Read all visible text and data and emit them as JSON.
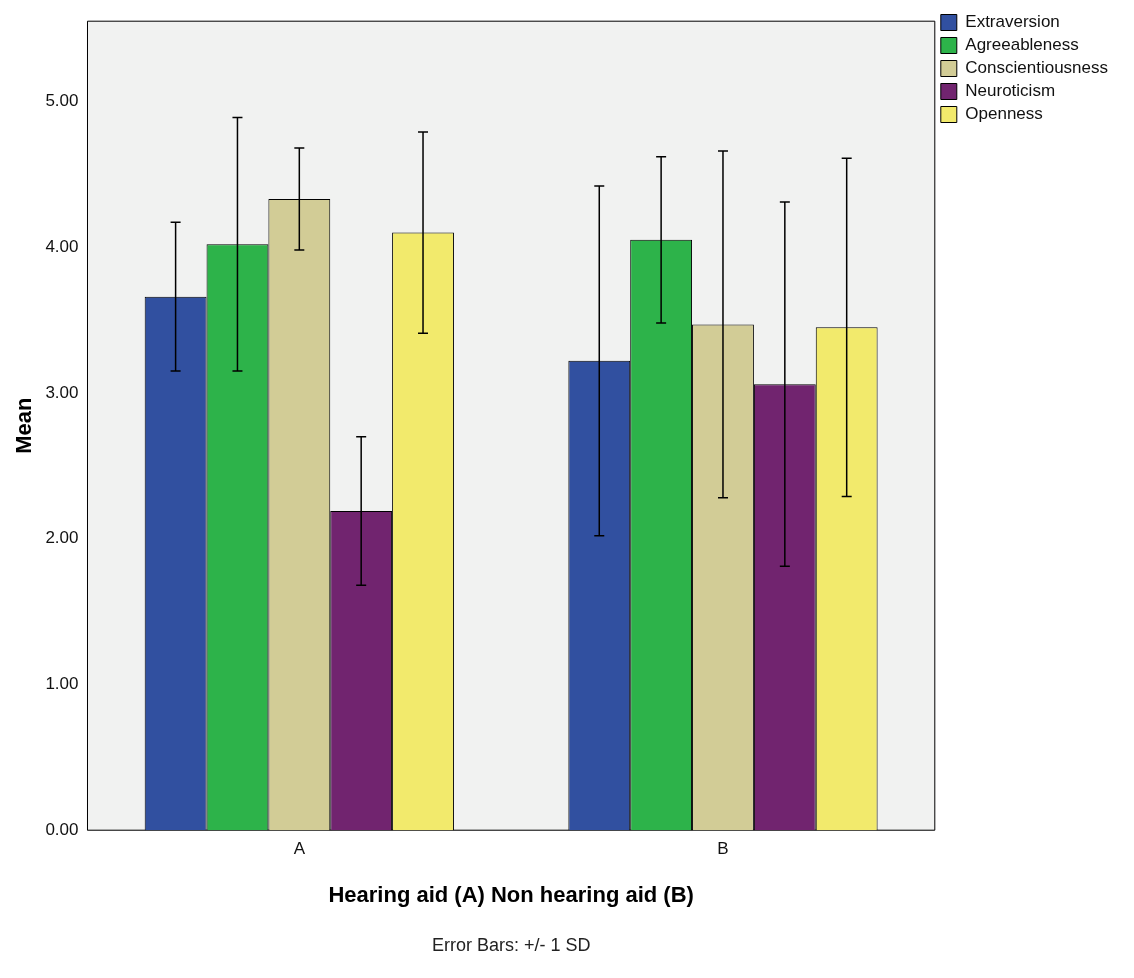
{
  "chart_data": {
    "type": "bar",
    "xlabel": "Hearing aid (A) Non hearing aid (B)",
    "ylabel": "Mean",
    "categories": [
      "A",
      "B"
    ],
    "series": [
      {
        "name": "Extraversion",
        "color": "#3150a0",
        "values": [
          3.66,
          3.22
        ],
        "errors": [
          0.51,
          1.2
        ]
      },
      {
        "name": "Agreeableness",
        "color": "#2db34a",
        "values": [
          4.02,
          4.05
        ],
        "errors": [
          0.87,
          0.57
        ]
      },
      {
        "name": "Conscientiousness",
        "color": "#d2cc96",
        "values": [
          4.33,
          3.47
        ],
        "errors": [
          0.35,
          1.19
        ]
      },
      {
        "name": "Neuroticism",
        "color": "#71246f",
        "values": [
          2.19,
          3.06
        ],
        "errors": [
          0.51,
          1.25
        ]
      },
      {
        "name": "Openness",
        "color": "#f2ea6c",
        "values": [
          4.1,
          3.45
        ],
        "errors": [
          0.69,
          1.16
        ]
      }
    ],
    "ylim": [
      0,
      5.55
    ],
    "yticks": [
      {
        "value": 0,
        "label": "0.00"
      },
      {
        "value": 1,
        "label": "1.00"
      },
      {
        "value": 2,
        "label": "2.00"
      },
      {
        "value": 3,
        "label": "3.00"
      },
      {
        "value": 4,
        "label": "4.00"
      },
      {
        "value": 5,
        "label": "5.00"
      }
    ],
    "grid": false,
    "legend": "top right",
    "annotations": [
      "Error Bars: +/- 1 SD"
    ]
  }
}
